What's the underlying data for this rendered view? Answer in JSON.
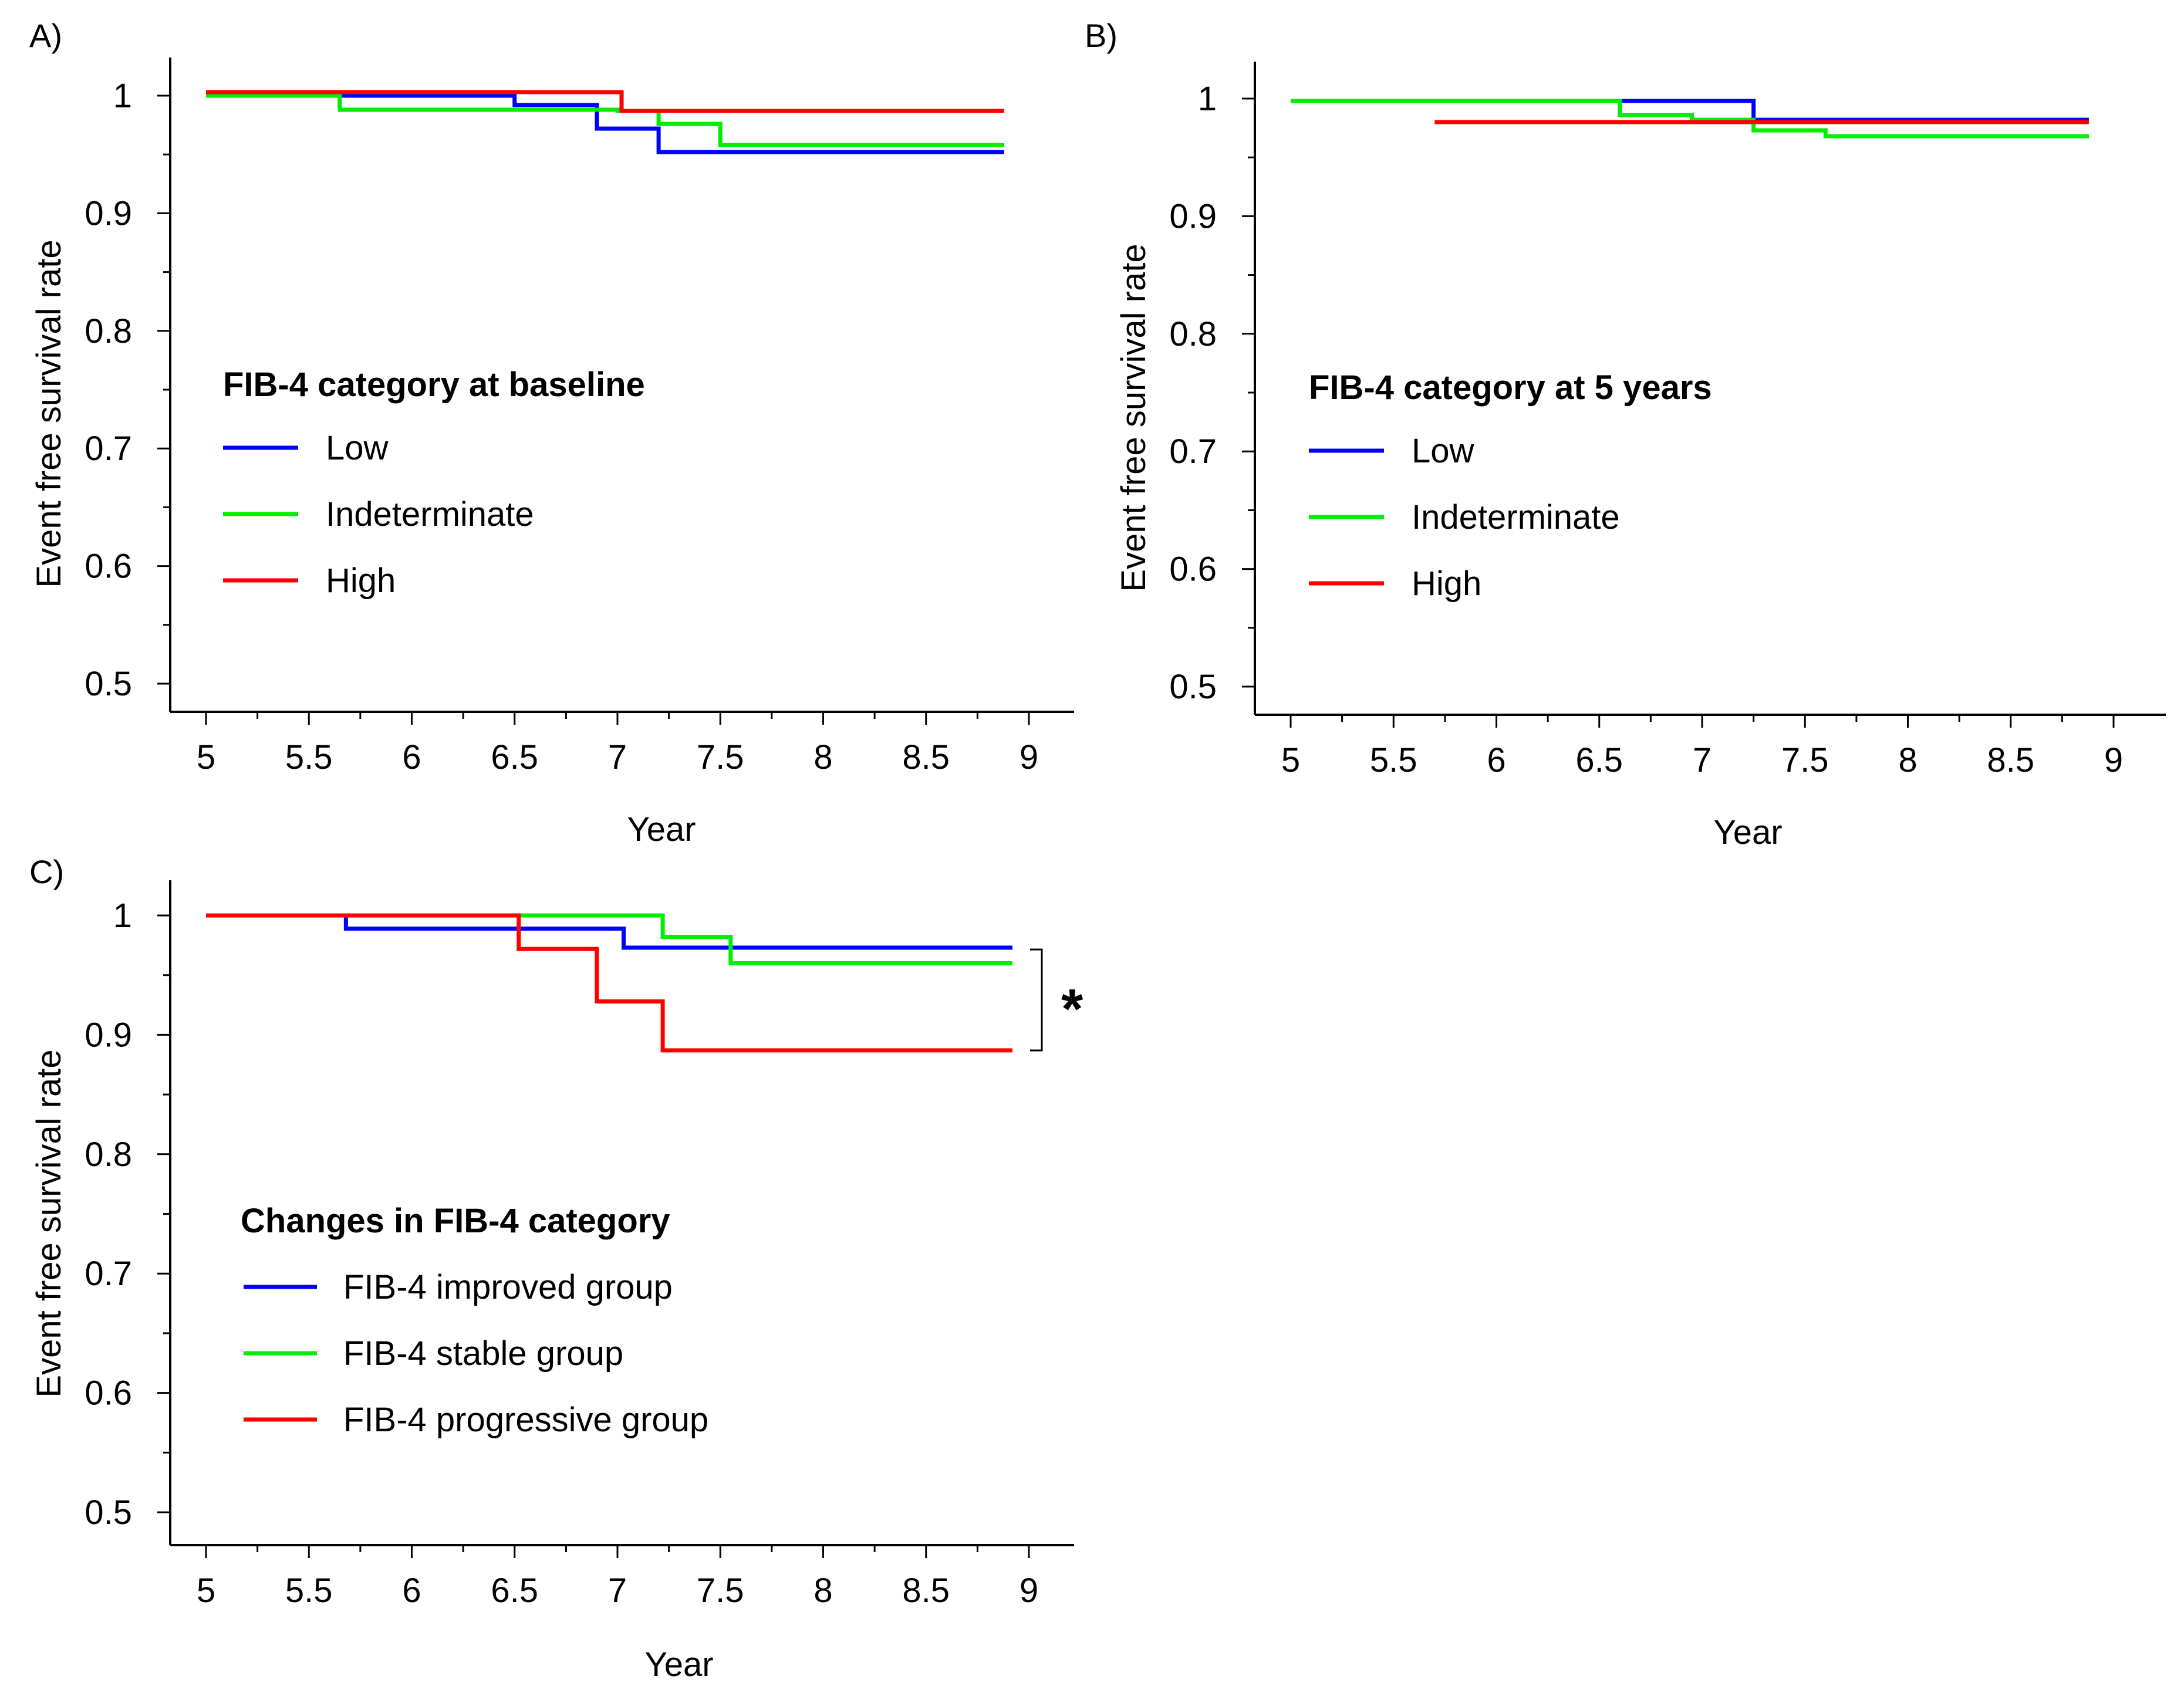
{
  "chart_data": [
    {
      "type": "line",
      "panel_label": "A)",
      "xlabel": "Year",
      "ylabel": "Event  free survival  rate",
      "xlim": [
        5,
        9
      ],
      "ylim": [
        0.5,
        1
      ],
      "xticks": [
        5,
        5.5,
        6,
        6.5,
        7,
        7.5,
        8,
        8.5,
        9
      ],
      "xtick_labels": [
        "5",
        "5.5",
        "6",
        "6.5",
        "7",
        "7.5",
        "8",
        "8.5",
        "9"
      ],
      "yticks": [
        0.5,
        0.6,
        0.7,
        0.8,
        0.9,
        1
      ],
      "ytick_labels": [
        "0.5",
        "0.6",
        "0.7",
        "0.8",
        "0.9",
        "1"
      ],
      "legend_title": "FIB-4 category at baseline",
      "legend_position": "center-left",
      "series": [
        {
          "name": "Low",
          "color": "#0000ff",
          "x": [
            5.0,
            6.5,
            6.9,
            7.2,
            8.88
          ],
          "y": [
            1.0,
            0.992,
            0.972,
            0.952,
            0.952
          ]
        },
        {
          "name": "Indeterminate",
          "color": "#00ee00",
          "x": [
            5.0,
            5.65,
            7.0,
            7.2,
            7.5,
            8.88
          ],
          "y": [
            1.0,
            0.988,
            0.987,
            0.976,
            0.958,
            0.958
          ]
        },
        {
          "name": "High",
          "color": "#ff0000",
          "x": [
            5.0,
            7.02,
            8.88
          ],
          "y": [
            1.003,
            0.987,
            0.987
          ]
        }
      ]
    },
    {
      "type": "line",
      "panel_label": "B)",
      "xlabel": "Year",
      "ylabel": "Event  free survival  rate",
      "xlim": [
        5,
        9
      ],
      "ylim": [
        0.5,
        1
      ],
      "xticks": [
        5,
        5.5,
        6,
        6.5,
        7,
        7.5,
        8,
        8.5,
        9
      ],
      "xtick_labels": [
        "5",
        "5.5",
        "6",
        "6.5",
        "7",
        "7.5",
        "8",
        "8.5",
        "9"
      ],
      "yticks": [
        0.5,
        0.6,
        0.7,
        0.8,
        0.9,
        1
      ],
      "ytick_labels": [
        "0.5",
        "0.6",
        "0.7",
        "0.8",
        "0.9",
        "1"
      ],
      "legend_title": "FIB-4 category at 5 years",
      "legend_position": "center-left",
      "series": [
        {
          "name": "Low",
          "color": "#0000ff",
          "x": [
            5.0,
            7.25,
            8.88
          ],
          "y": [
            0.998,
            0.982,
            0.982
          ]
        },
        {
          "name": "Indeterminate",
          "color": "#00ee00",
          "x": [
            5.0,
            6.6,
            6.95,
            7.25,
            7.6,
            8.88
          ],
          "y": [
            0.998,
            0.986,
            0.982,
            0.973,
            0.968,
            0.968
          ]
        },
        {
          "name": "High",
          "color": "#ff0000",
          "x": [
            5.7,
            8.88
          ],
          "y": [
            0.98,
            0.98
          ]
        }
      ]
    },
    {
      "type": "line",
      "panel_label": "C)",
      "xlabel": "Year",
      "ylabel": "Event  free survival  rate",
      "xlim": [
        5,
        9
      ],
      "ylim": [
        0.5,
        1
      ],
      "xticks": [
        5,
        5.5,
        6,
        6.5,
        7,
        7.5,
        8,
        8.5,
        9
      ],
      "xtick_labels": [
        "5",
        "5.5",
        "6",
        "6.5",
        "7",
        "7.5",
        "8",
        "8.5",
        "9"
      ],
      "yticks": [
        0.5,
        0.6,
        0.7,
        0.8,
        0.9,
        1
      ],
      "ytick_labels": [
        "0.5",
        "0.6",
        "0.7",
        "0.8",
        "0.9",
        "1"
      ],
      "legend_title": "Changes in FIB-4 category",
      "legend_position": "center-left",
      "annotation": "*",
      "series": [
        {
          "name": "FIB-4 improved group",
          "color": "#0000ff",
          "x": [
            5.0,
            5.68,
            7.03,
            8.92
          ],
          "y": [
            1.0,
            0.989,
            0.973,
            0.973
          ]
        },
        {
          "name": "FIB-4 stable group",
          "color": "#00ee00",
          "x": [
            5.0,
            7.22,
            7.55,
            8.92
          ],
          "y": [
            1.0,
            0.982,
            0.96,
            0.96
          ]
        },
        {
          "name": "FIB-4 progressive group",
          "color": "#ff0000",
          "x": [
            5.0,
            6.52,
            6.9,
            7.22,
            8.92
          ],
          "y": [
            1.0,
            0.972,
            0.928,
            0.887,
            0.887
          ]
        }
      ]
    }
  ]
}
